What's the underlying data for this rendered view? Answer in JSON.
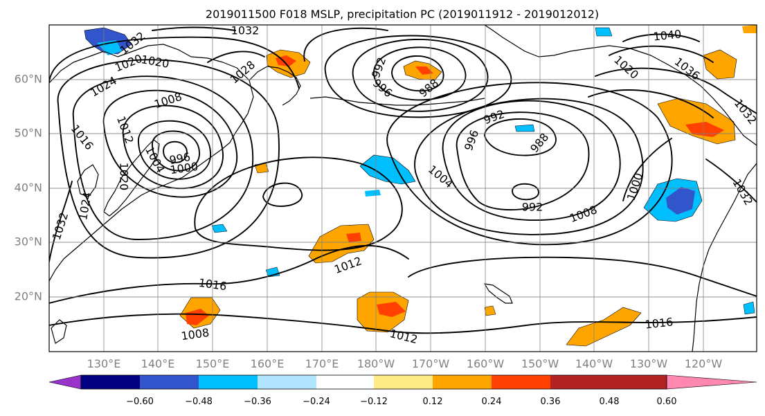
{
  "title": "2019011500 F018 MSLP, precipitation PC (2019011912 - 2019012012)",
  "lat_labels": [
    "60°N",
    "50°N",
    "40°N",
    "30°N",
    "20°N"
  ],
  "lon_labels": [
    "130°E",
    "140°E",
    "150°E",
    "160°E",
    "170°E",
    "180°W",
    "170°W",
    "160°W",
    "150°W",
    "140°W",
    "130°W",
    "120°W"
  ],
  "contour_labels": [
    "1032",
    "1032",
    "1020",
    "1020",
    "1024",
    "1028",
    "1008",
    "1016",
    "1012",
    "1004",
    "996",
    "1000",
    "1020",
    "1024",
    "1032",
    "992",
    "996",
    "988",
    "992",
    "988",
    "996",
    "1004",
    "992",
    "1008",
    "1000",
    "1040",
    "1020",
    "1036",
    "1032",
    "1012",
    "1016",
    "1008",
    "1012",
    "1016",
    "1032"
  ],
  "colorbar": {
    "colors": [
      "#9933cc",
      "#000080",
      "#3355cc",
      "#00bfff",
      "#b3e5ff",
      "#ffffff",
      "#ffeb88",
      "#ffa500",
      "#ff4000",
      "#b22222",
      "#ff88b0"
    ],
    "tick_labels": [
      "−0.60",
      "−0.48",
      "−0.36",
      "−0.24",
      "−0.12",
      "0.12",
      "0.24",
      "0.36",
      "0.48",
      "0.60"
    ]
  },
  "legend_colors": {
    "contour": "#000000",
    "grid": "#808080",
    "label": "#808080"
  }
}
